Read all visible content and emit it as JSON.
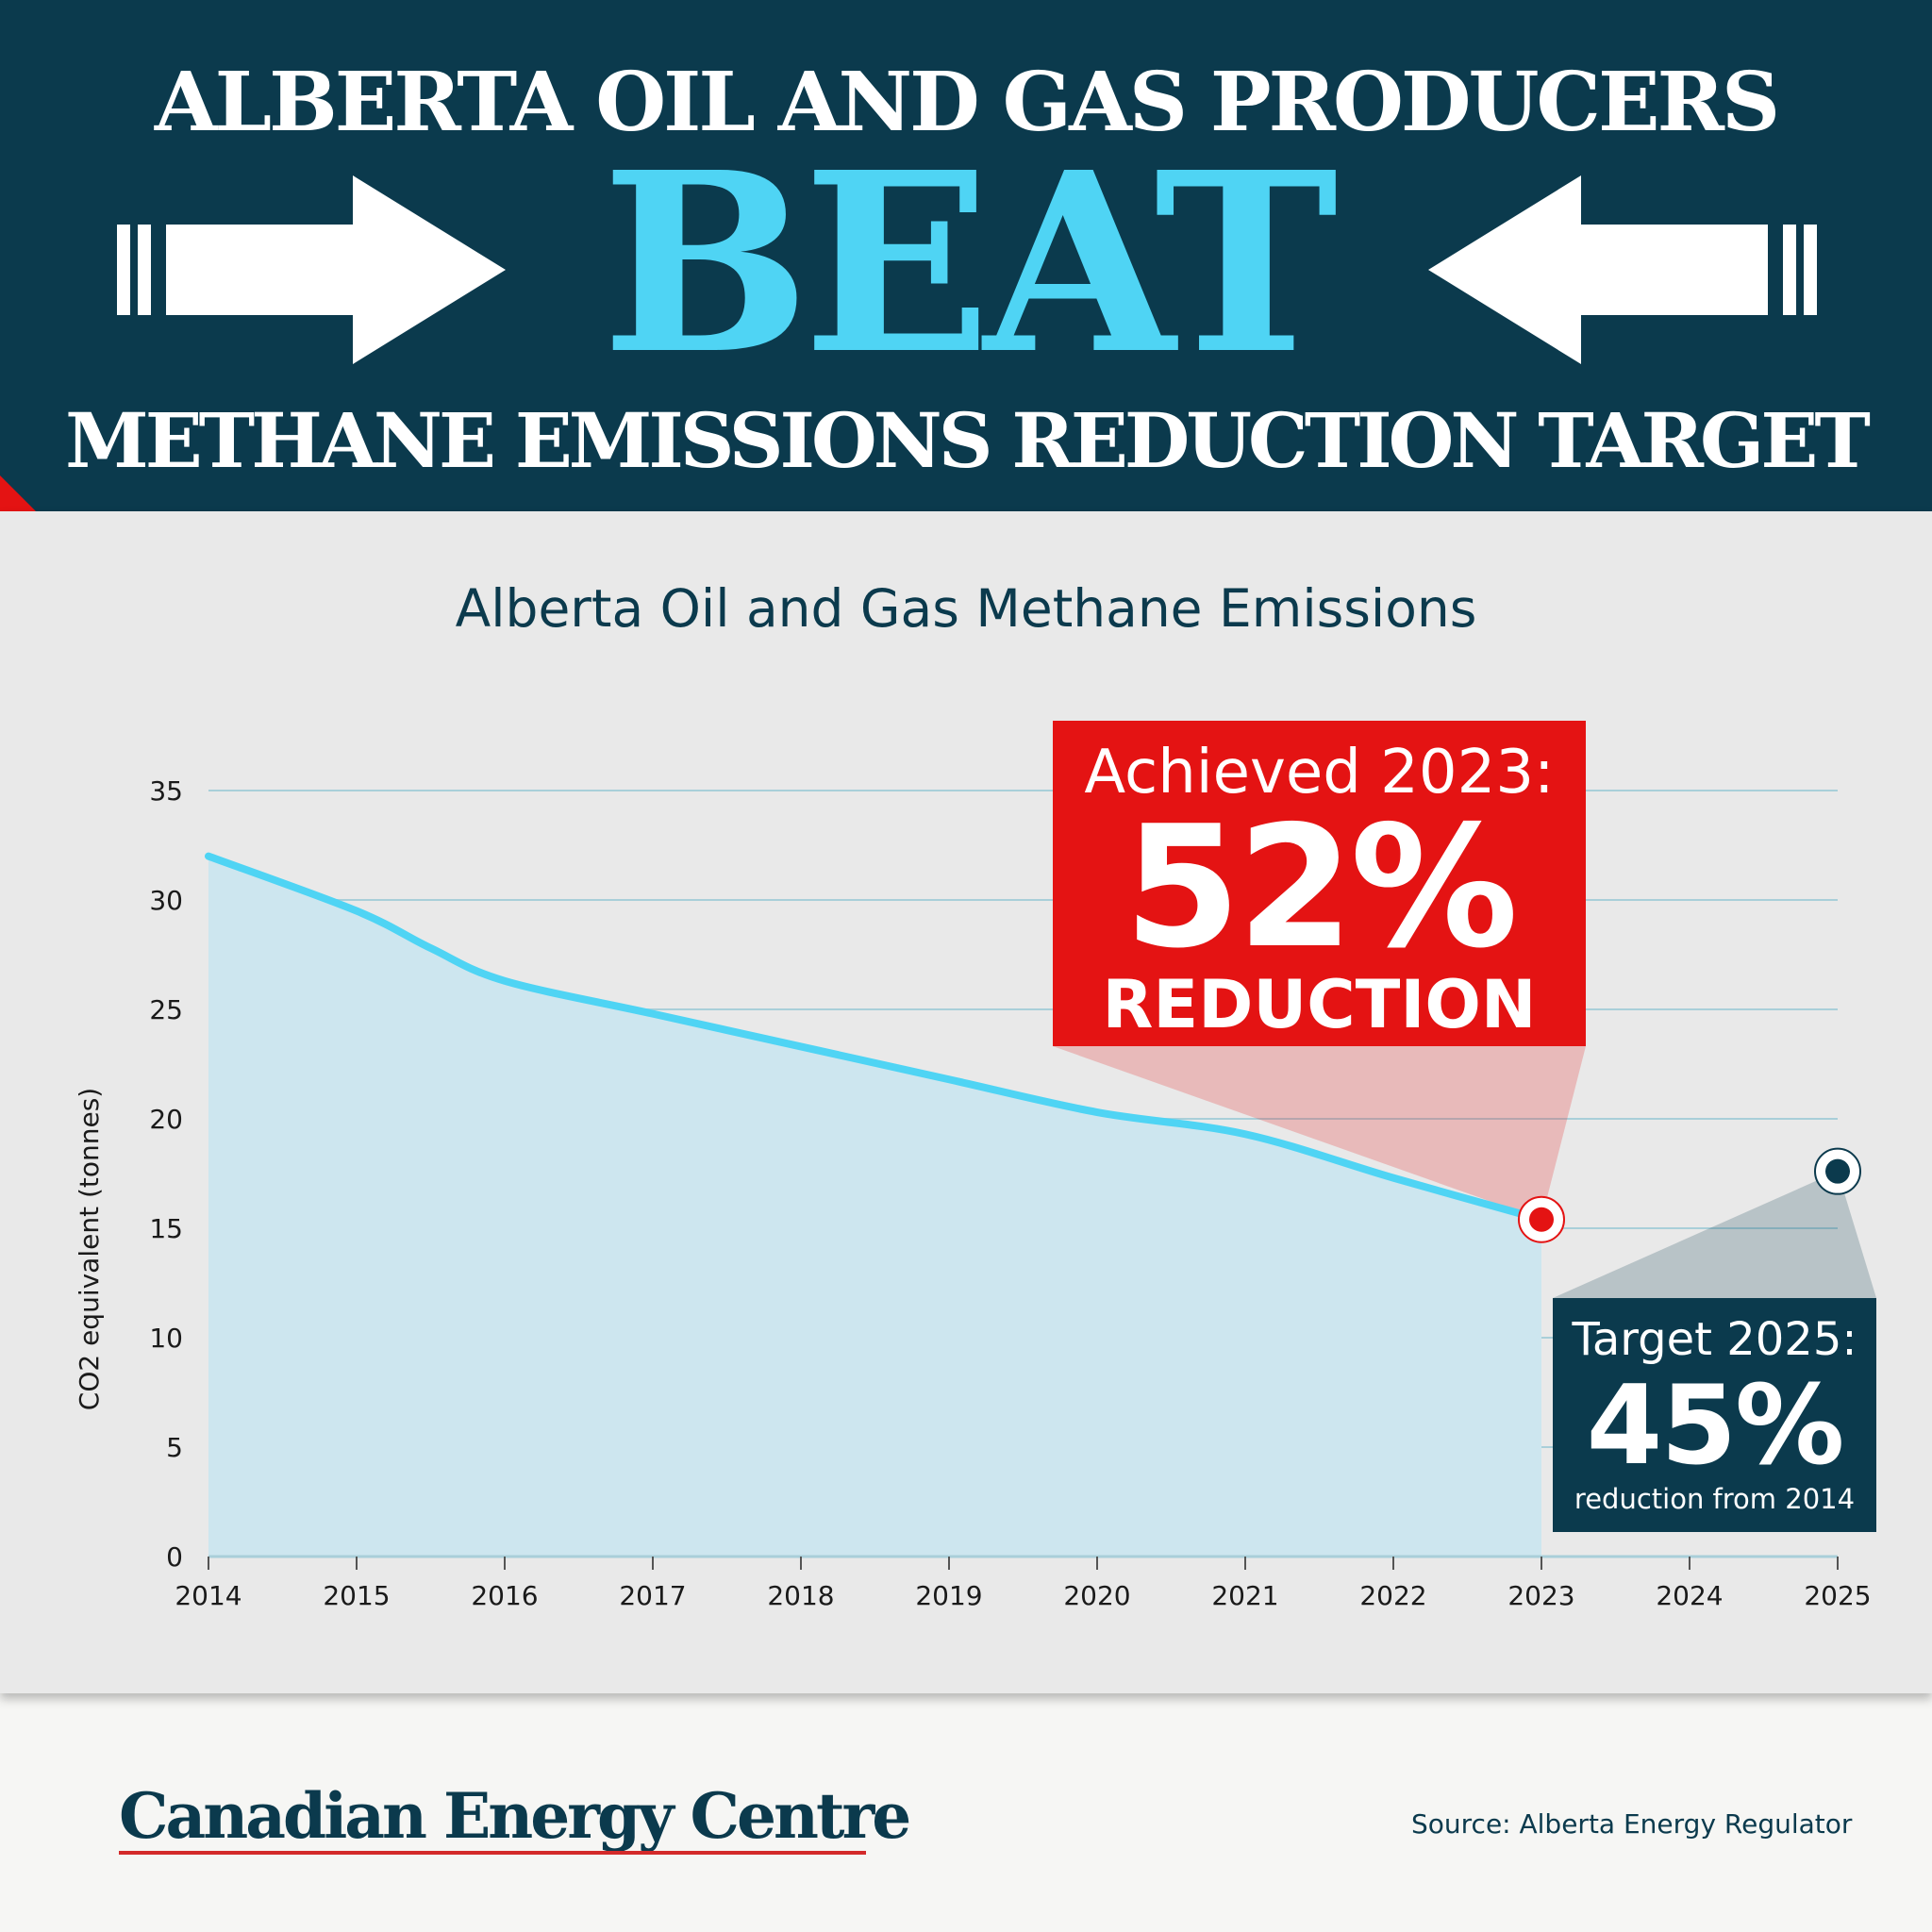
{
  "header": {
    "headline_top": "ALBERTA OIL AND GAS PRODUCERS",
    "headline_middle": "BEAT",
    "headline_bottom": "METHANE EMISSIONS REDUCTION TARGET"
  },
  "chart_data": {
    "type": "area",
    "title": "Alberta Oil and Gas Methane Emissions",
    "ylabel": "CO2 equivalent (tonnes)",
    "xlabel": "",
    "x_ticks": [
      "2014",
      "2015",
      "2016",
      "2017",
      "2018",
      "2019",
      "2020",
      "2021",
      "2022",
      "2023",
      "2024",
      "2025"
    ],
    "y_ticks": [
      "0",
      "5",
      "10",
      "15",
      "20",
      "25",
      "30",
      "35"
    ],
    "xlim": [
      2014,
      2025
    ],
    "ylim": [
      0,
      35
    ],
    "grid": true,
    "series": [
      {
        "x": [
          2014,
          2015,
          2015.5,
          2016,
          2017,
          2018,
          2019,
          2020,
          2021,
          2022,
          2023
        ],
        "y": [
          32,
          29.5,
          27.8,
          26.3,
          24.8,
          23.3,
          21.8,
          20.3,
          19.3,
          17.3,
          15.4
        ],
        "color": "#4fd4f4",
        "fill": "#cde6ef"
      }
    ],
    "markers": [
      {
        "x": 2023,
        "y": 15.4,
        "color": "#e41313"
      },
      {
        "x": 2025,
        "y": 17.6,
        "color": "#0b3a4d"
      }
    ]
  },
  "callouts": {
    "achieved": {
      "label": "Achieved 2023:",
      "value": "52%",
      "sub": "REDUCTION",
      "color": "#e41313"
    },
    "target": {
      "label": "Target 2025:",
      "value": "45%",
      "sub": "reduction from 2014",
      "color": "#0b3a4d"
    }
  },
  "footer": {
    "brand": "Canadian Energy Centre",
    "source": "Source: Alberta Energy Regulator"
  },
  "colors": {
    "navy": "#0b3a4d",
    "cyan": "#4fd4f4",
    "red": "#e41313",
    "panel": "#e9e9e9"
  },
  "icons": [
    "arrow-right-icon",
    "arrow-left-icon"
  ]
}
